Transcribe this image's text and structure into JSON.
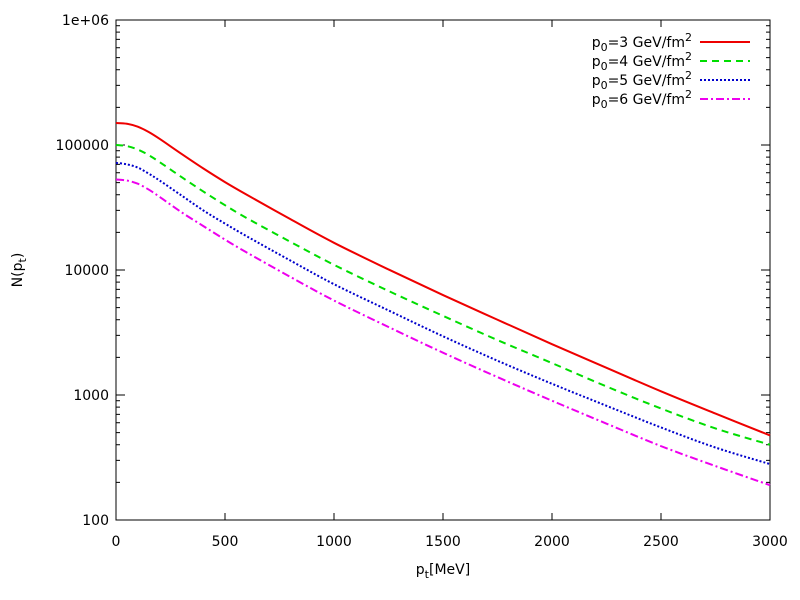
{
  "chart_data": {
    "type": "line",
    "x_axis": {
      "label_main": "p",
      "label_sub": "t",
      "label_rest": "[MeV]",
      "range": [
        0,
        3000
      ],
      "ticks": [
        0,
        500,
        1000,
        1500,
        2000,
        2500,
        3000
      ],
      "tick_labels": [
        "0",
        "500",
        "1000",
        "1500",
        "2000",
        "2500",
        "3000"
      ]
    },
    "y_axis": {
      "label_main": "N(p",
      "label_sub": "t",
      "label_rest": ")",
      "scale": "log",
      "range": [
        100,
        1000000
      ],
      "ticks": [
        100,
        1000,
        10000,
        100000,
        1000000
      ],
      "tick_labels": [
        "100",
        "1000",
        "10000",
        "100000",
        "1e+06"
      ]
    },
    "grid": false,
    "legend_position": "top-right",
    "x": [
      0,
      50,
      100,
      150,
      200,
      300,
      400,
      500,
      600,
      800,
      1000,
      1250,
      1500,
      1750,
      2000,
      2250,
      2500,
      2750,
      3000
    ],
    "series": [
      {
        "name_main": "p",
        "name_sub": "0",
        "name_rest": "=3 GeV/fm",
        "name_sup": "2",
        "color": "#ee0000",
        "dash": "solid",
        "values": [
          150000,
          148000,
          140000,
          127000,
          112000,
          85000,
          65000,
          50500,
          40000,
          25500,
          16500,
          10100,
          6300,
          4000,
          2550,
          1650,
          1070,
          710,
          475
        ]
      },
      {
        "name_main": "p",
        "name_sub": "0",
        "name_rest": "=4 GeV/fm",
        "name_sup": "2",
        "color": "#00dd00",
        "dash": "dashed",
        "values": [
          100000,
          98000,
          92000,
          83000,
          73000,
          55500,
          42500,
          33000,
          26000,
          16800,
          11000,
          6800,
          4300,
          2750,
          1800,
          1170,
          780,
          540,
          400
        ]
      },
      {
        "name_main": "p",
        "name_sub": "0",
        "name_rest": "=5 GeV/fm",
        "name_sup": "2",
        "color": "#0000cc",
        "dash": "dotted",
        "values": [
          72000,
          70000,
          66000,
          59000,
          52000,
          39500,
          30000,
          23500,
          18600,
          11900,
          7700,
          4750,
          2950,
          1880,
          1230,
          820,
          550,
          380,
          280
        ]
      },
      {
        "name_main": "p",
        "name_sub": "0",
        "name_rest": "=6 GeV/fm",
        "name_sup": "2",
        "color": "#ee00ee",
        "dash": "dashdot",
        "values": [
          53000,
          52000,
          49000,
          44000,
          38500,
          29000,
          22500,
          17500,
          13800,
          8800,
          5700,
          3500,
          2180,
          1390,
          900,
          590,
          390,
          270,
          190
        ]
      }
    ]
  }
}
